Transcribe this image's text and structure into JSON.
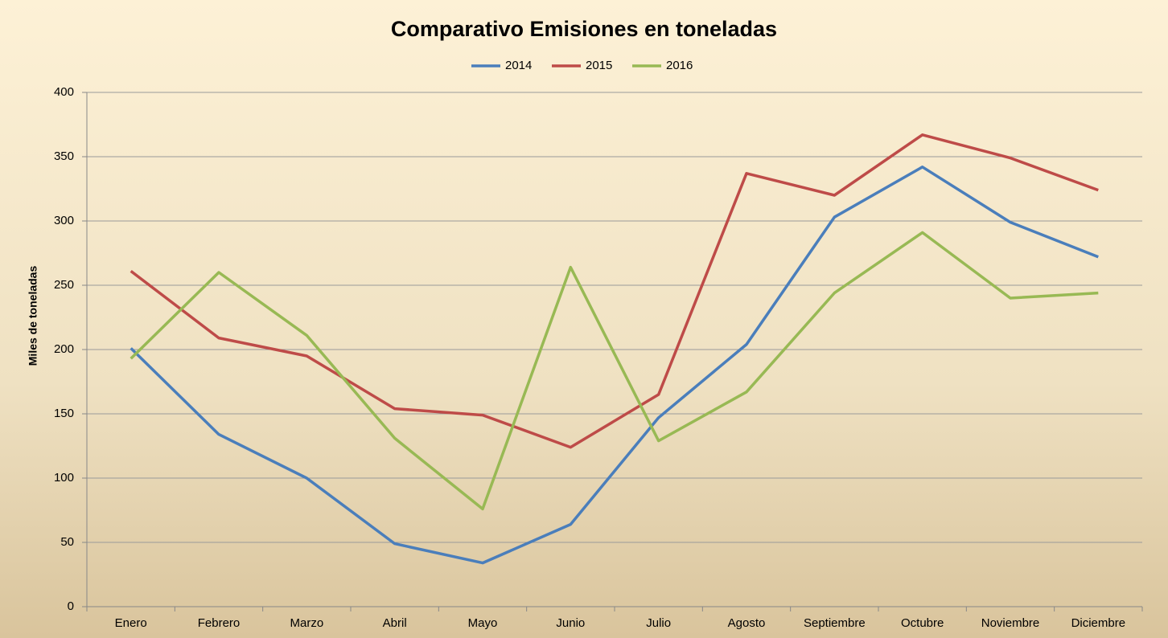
{
  "chart_data": {
    "type": "line",
    "title": "Comparativo Emisiones en toneladas",
    "ylabel": "Miles de toneladas",
    "categories": [
      "Enero",
      "Febrero",
      "Marzo",
      "Abril",
      "Mayo",
      "Junio",
      "Julio",
      "Agosto",
      "Septiembre",
      "Octubre",
      "Noviembre",
      "Diciembre"
    ],
    "series": [
      {
        "name": "2014",
        "color": "#4a7ebb",
        "values": [
          201,
          134,
          100,
          49,
          34,
          64,
          147,
          204,
          303,
          342,
          299,
          272
        ]
      },
      {
        "name": "2015",
        "color": "#be4b48",
        "values": [
          261,
          209,
          195,
          154,
          149,
          124,
          165,
          337,
          320,
          367,
          349,
          324
        ]
      },
      {
        "name": "2016",
        "color": "#98b954",
        "values": [
          193,
          260,
          211,
          131,
          76,
          264,
          129,
          167,
          244,
          291,
          240,
          244
        ]
      }
    ],
    "ylim": [
      0,
      400
    ],
    "yticks": [
      0,
      50,
      100,
      150,
      200,
      250,
      300,
      350,
      400
    ],
    "grid": true,
    "legend": "top"
  }
}
